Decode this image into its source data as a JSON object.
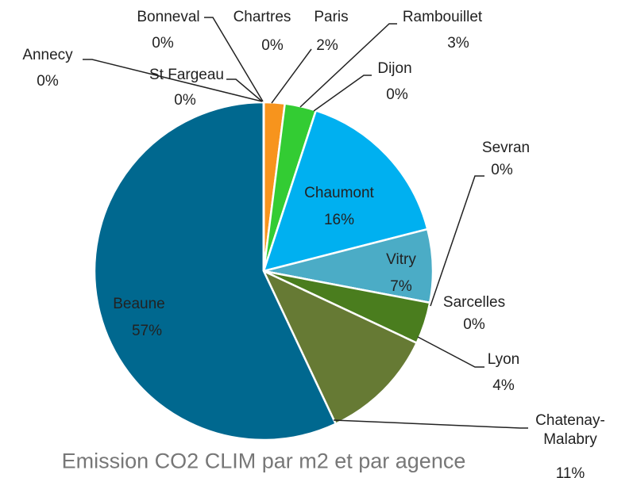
{
  "chart_data": {
    "type": "pie",
    "title": "Emission CO2 CLIM par m2 et par agence",
    "categories": [
      "Chartres",
      "Paris",
      "Rambouillet",
      "Dijon",
      "Chaumont",
      "Vitry",
      "Sevran",
      "Sarcelles",
      "Lyon",
      "Chatenay-Malabry",
      "Beaune",
      "Annecy",
      "St Fargeau",
      "Bonneval"
    ],
    "values": [
      0,
      2,
      3,
      0,
      16,
      7,
      0,
      0,
      4,
      11,
      57,
      0,
      0,
      0
    ],
    "value_labels": [
      "0%",
      "2%",
      "3%",
      "0%",
      "16%",
      "7%",
      "0%",
      "0%",
      "4%",
      "11%",
      "57%",
      "0%",
      "0%",
      "0%"
    ],
    "colors": [
      "#a5a5a5",
      "#f7941d",
      "#33cc33",
      "#ffc000",
      "#00b0f0",
      "#4bacc6",
      "#5b9bd5",
      "#70ad47",
      "#4a7d1e",
      "#667a34",
      "#00688f",
      "#264478",
      "#9e480e",
      "#636363"
    ]
  }
}
